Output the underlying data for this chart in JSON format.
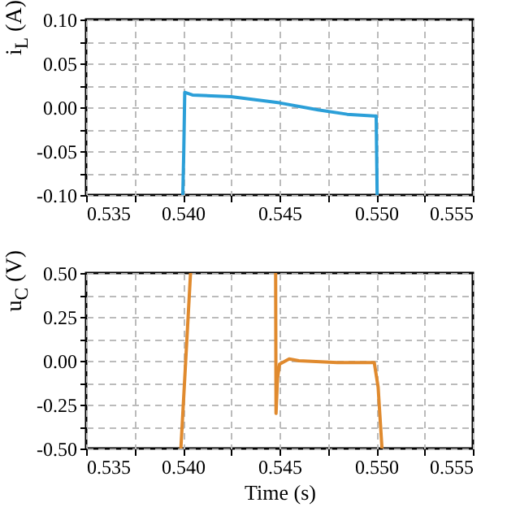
{
  "chart_data": [
    {
      "type": "line",
      "ylabel": "i$_{L}$ (A)",
      "x": [
        0.54,
        0.54005,
        0.5401,
        0.5405,
        0.5425,
        0.545,
        0.547,
        0.5485,
        0.5499,
        0.55,
        0.55005
      ],
      "series": [
        {
          "color": "#2b9fd8",
          "values": [
            -0.1,
            -0.05,
            0.017,
            0.014,
            0.012,
            0.005,
            -0.003,
            -0.008,
            -0.01,
            -0.01,
            -0.1
          ]
        }
      ],
      "xlim": [
        0.535,
        0.555
      ],
      "xticks": [
        {
          "value": 0.535,
          "label": "0.535"
        },
        {
          "value": 0.5375,
          "label": null
        },
        {
          "value": 0.54,
          "label": "0.540"
        },
        {
          "value": 0.5425,
          "label": null
        },
        {
          "value": 0.545,
          "label": "0.545"
        },
        {
          "value": 0.5475,
          "label": null
        },
        {
          "value": 0.55,
          "label": "0.550"
        },
        {
          "value": 0.5525,
          "label": null
        },
        {
          "value": 0.555,
          "label": "0.555"
        }
      ],
      "ylim": [
        -0.1,
        0.1
      ],
      "yticks": [
        {
          "value": -0.1,
          "label": "-0.10"
        },
        {
          "value": -0.075,
          "label": null
        },
        {
          "value": -0.05,
          "label": "-0.05"
        },
        {
          "value": -0.025,
          "label": null
        },
        {
          "value": 0,
          "label": "0.00"
        },
        {
          "value": 0.025,
          "label": null
        },
        {
          "value": 0.05,
          "label": "0.05"
        },
        {
          "value": 0.075,
          "label": null
        },
        {
          "value": 0.1,
          "label": "0.10"
        }
      ],
      "grid": true
    },
    {
      "type": "line",
      "xlabel": "Time (s)",
      "ylabel": "u$_{C}$ (V)",
      "x": [
        0.5399,
        0.54,
        0.5401,
        0.5402,
        0.5404,
        0.5426,
        0.5448,
        0.54482,
        0.5449,
        0.545,
        0.5455,
        0.546,
        0.548,
        0.5499,
        0.5501,
        0.5503
      ],
      "series": [
        {
          "color": "#e08a2e",
          "values": [
            -0.5,
            -0.3,
            -0.1,
            0.1,
            0.5,
            null,
            0.5,
            -0.3,
            -0.1,
            -0.02,
            0.01,
            0,
            -0.01,
            -0.01,
            -0.15,
            -0.5
          ]
        }
      ],
      "xlim": [
        0.535,
        0.555
      ],
      "xticks": [
        {
          "value": 0.535,
          "label": "0.535"
        },
        {
          "value": 0.5375,
          "label": null
        },
        {
          "value": 0.54,
          "label": "0.540"
        },
        {
          "value": 0.5425,
          "label": null
        },
        {
          "value": 0.545,
          "label": "0.545"
        },
        {
          "value": 0.5475,
          "label": null
        },
        {
          "value": 0.55,
          "label": "0.550"
        },
        {
          "value": 0.5525,
          "label": null
        },
        {
          "value": 0.555,
          "label": "0.555"
        }
      ],
      "ylim": [
        -0.5,
        0.5
      ],
      "yticks": [
        {
          "value": -0.5,
          "label": "-0.50"
        },
        {
          "value": -0.375,
          "label": null
        },
        {
          "value": -0.25,
          "label": "-0.25"
        },
        {
          "value": -0.125,
          "label": null
        },
        {
          "value": 0,
          "label": "0.00"
        },
        {
          "value": 0.125,
          "label": null
        },
        {
          "value": 0.25,
          "label": "0.25"
        },
        {
          "value": 0.375,
          "label": null
        },
        {
          "value": 0.5,
          "label": "0.50"
        }
      ],
      "grid": true
    }
  ]
}
